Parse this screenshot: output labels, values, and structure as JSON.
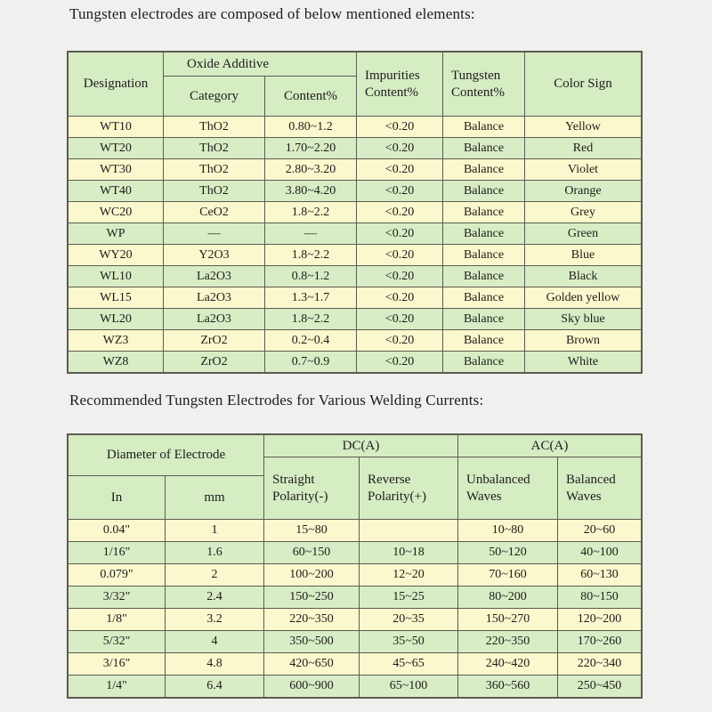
{
  "titles": {
    "composition": "Tungsten electrodes are composed of below mentioned elements:",
    "currents": "Recommended Tungsten Electrodes for Various Welding Currents:"
  },
  "colors": {
    "row_yellow": "#fbf8cd",
    "row_green": "#d8edc5",
    "header_green": "#d6ecc3",
    "border": "#5c5c52",
    "page_background": "#f0f0ee",
    "text": "#1d1d1b"
  },
  "composition_table": {
    "headers": {
      "designation": "Designation",
      "oxide_additive": "Oxide Additive",
      "category": "Category",
      "content": "Content%",
      "impurities": "Impurities Content%",
      "tungsten": "Tungsten Content%",
      "color_sign": "Color Sign"
    },
    "columns": [
      "designation",
      "category",
      "content",
      "impurities",
      "tungsten",
      "color_sign"
    ],
    "rows": [
      {
        "designation": "WT10",
        "category": "ThO2",
        "content": "0.80~1.2",
        "impurities": "<0.20",
        "tungsten": "Balance",
        "color_sign": "Yellow"
      },
      {
        "designation": "WT20",
        "category": "ThO2",
        "content": "1.70~2.20",
        "impurities": "<0.20",
        "tungsten": "Balance",
        "color_sign": "Red"
      },
      {
        "designation": "WT30",
        "category": "ThO2",
        "content": "2.80~3.20",
        "impurities": "<0.20",
        "tungsten": "Balance",
        "color_sign": "Violet"
      },
      {
        "designation": "WT40",
        "category": "ThO2",
        "content": "3.80~4.20",
        "impurities": "<0.20",
        "tungsten": "Balance",
        "color_sign": "Orange"
      },
      {
        "designation": "WC20",
        "category": "CeO2",
        "content": "1.8~2.2",
        "impurities": "<0.20",
        "tungsten": "Balance",
        "color_sign": "Grey"
      },
      {
        "designation": "WP",
        "category": "—",
        "content": "—",
        "impurities": "<0.20",
        "tungsten": "Balance",
        "color_sign": "Green"
      },
      {
        "designation": "WY20",
        "category": "Y2O3",
        "content": "1.8~2.2",
        "impurities": "<0.20",
        "tungsten": "Balance",
        "color_sign": "Blue"
      },
      {
        "designation": "WL10",
        "category": "La2O3",
        "content": "0.8~1.2",
        "impurities": "<0.20",
        "tungsten": "Balance",
        "color_sign": "Black"
      },
      {
        "designation": "WL15",
        "category": "La2O3",
        "content": "1.3~1.7",
        "impurities": "<0.20",
        "tungsten": "Balance",
        "color_sign": "Golden yellow"
      },
      {
        "designation": "WL20",
        "category": "La2O3",
        "content": "1.8~2.2",
        "impurities": "<0.20",
        "tungsten": "Balance",
        "color_sign": "Sky blue"
      },
      {
        "designation": "WZ3",
        "category": "ZrO2",
        "content": "0.2~0.4",
        "impurities": "<0.20",
        "tungsten": "Balance",
        "color_sign": "Brown"
      },
      {
        "designation": "WZ8",
        "category": "ZrO2",
        "content": "0.7~0.9",
        "impurities": "<0.20",
        "tungsten": "Balance",
        "color_sign": "White"
      }
    ]
  },
  "currents_table": {
    "headers": {
      "diameter": "Diameter of Electrode",
      "in": "In",
      "mm": "mm",
      "dc": "DC(A)",
      "ac": "AC(A)",
      "straight": "Straight Polarity(-)",
      "reverse": "Reverse Polarity(+)",
      "unbalanced": "Unbalanced Waves",
      "balanced": "Balanced Waves"
    },
    "columns": [
      "in",
      "mm",
      "straight",
      "reverse",
      "unbalanced",
      "balanced"
    ],
    "rows": [
      {
        "in": "0.04\"",
        "mm": "1",
        "straight": "15~80",
        "reverse": "",
        "unbalanced": "10~80",
        "balanced": "20~60"
      },
      {
        "in": "1/16\"",
        "mm": "1.6",
        "straight": "60~150",
        "reverse": "10~18",
        "unbalanced": "50~120",
        "balanced": "40~100"
      },
      {
        "in": "0.079\"",
        "mm": "2",
        "straight": "100~200",
        "reverse": "12~20",
        "unbalanced": "70~160",
        "balanced": "60~130"
      },
      {
        "in": "3/32\"",
        "mm": "2.4",
        "straight": "150~250",
        "reverse": "15~25",
        "unbalanced": "80~200",
        "balanced": "80~150"
      },
      {
        "in": "1/8\"",
        "mm": "3.2",
        "straight": "220~350",
        "reverse": "20~35",
        "unbalanced": "150~270",
        "balanced": "120~200"
      },
      {
        "in": "5/32\"",
        "mm": "4",
        "straight": "350~500",
        "reverse": "35~50",
        "unbalanced": "220~350",
        "balanced": "170~260"
      },
      {
        "in": "3/16\"",
        "mm": "4.8",
        "straight": "420~650",
        "reverse": "45~65",
        "unbalanced": "240~420",
        "balanced": "220~340"
      },
      {
        "in": "1/4\"",
        "mm": "6.4",
        "straight": "600~900",
        "reverse": "65~100",
        "unbalanced": "360~560",
        "balanced": "250~450"
      }
    ]
  }
}
